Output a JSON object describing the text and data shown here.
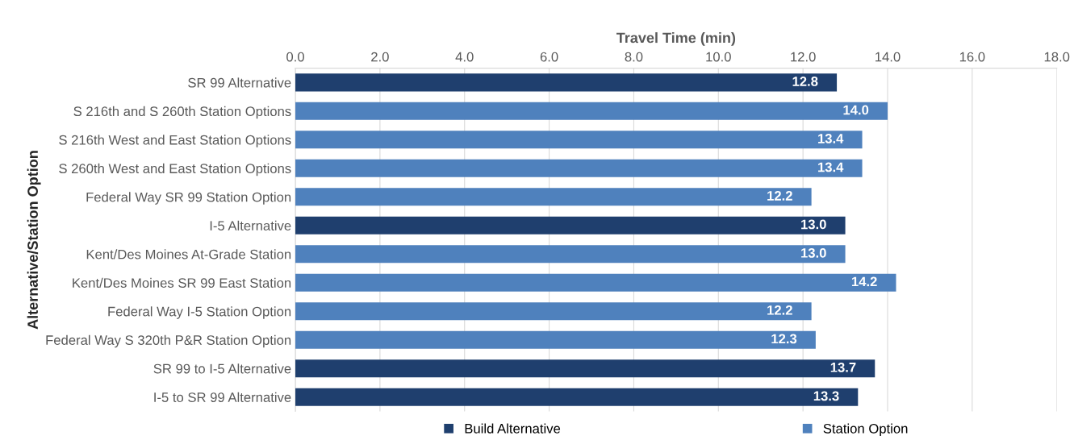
{
  "chart_data": {
    "type": "bar",
    "orientation": "horizontal",
    "xlabel": "Travel Time (min)",
    "ylabel": "Alternative/Station Option",
    "categories": [
      "SR 99 Alternative",
      "S 216th and S 260th Station Options",
      "S 216th West and East Station Options",
      "S 260th West and East Station Options",
      "Federal Way SR 99 Station Option",
      "I-5 Alternative",
      "Kent/Des Moines At-Grade Station",
      "Kent/Des Moines SR 99 East Station",
      "Federal Way I-5 Station Option",
      "Federal Way S 320th P&R Station Option",
      "SR 99 to I-5 Alternative",
      "I-5 to SR 99 Alternative"
    ],
    "series": [
      {
        "name": "Build Alternative",
        "color": "#1f3f6e",
        "values": [
          12.8,
          null,
          null,
          null,
          null,
          13.0,
          null,
          null,
          null,
          null,
          13.7,
          13.3
        ],
        "value_labels": [
          "12.8",
          null,
          null,
          null,
          null,
          "13.0",
          null,
          null,
          null,
          null,
          "13.7",
          "13.3"
        ]
      },
      {
        "name": "Station Option",
        "color": "#4f81bd",
        "values": [
          null,
          14.0,
          13.4,
          13.4,
          12.2,
          null,
          13.0,
          14.2,
          12.2,
          12.3,
          null,
          null
        ],
        "value_labels": [
          null,
          "14.0",
          "13.4",
          "13.4",
          "12.2",
          null,
          "13.0",
          "14.2",
          "12.2",
          "12.3",
          null,
          null
        ]
      }
    ],
    "xlim": [
      0,
      18
    ],
    "xticks": [
      {
        "value": 0,
        "label": "0.0"
      },
      {
        "value": 2,
        "label": "2.0"
      },
      {
        "value": 4,
        "label": "4.0"
      },
      {
        "value": 6,
        "label": "6.0"
      },
      {
        "value": 8,
        "label": "8.0"
      },
      {
        "value": 10,
        "label": "10.0"
      },
      {
        "value": 12,
        "label": "12.0"
      },
      {
        "value": 14,
        "label": "14.0"
      },
      {
        "value": 16,
        "label": "16.0"
      },
      {
        "value": 18,
        "label": "18.0"
      }
    ],
    "grid": "x",
    "legend": "bottom"
  }
}
